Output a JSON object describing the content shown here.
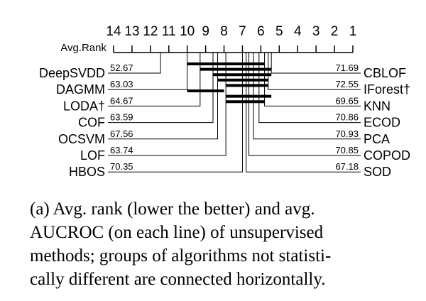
{
  "chart_data": {
    "type": "critical-difference",
    "axis_label": "Avg.Rank",
    "xlim": [
      14,
      1
    ],
    "xticks": [
      14,
      13,
      12,
      11,
      10,
      9,
      8,
      7,
      6,
      5,
      4,
      3,
      2,
      1
    ],
    "left_methods": {
      "names": [
        "DeepSVDD",
        "DAGMM",
        "LODA†",
        "COF",
        "OCSVM",
        "LOF",
        "HBOS"
      ],
      "ranks": [
        11.45,
        10.0,
        9.3,
        8.6,
        8.35,
        7.9,
        7.0
      ],
      "aucroc": [
        52.67,
        63.03,
        64.67,
        63.59,
        67.56,
        63.74,
        70.35
      ]
    },
    "right_methods": {
      "names": [
        "CBLOF",
        "IForest†",
        "KNN",
        "ECOD",
        "PCA",
        "COPOD",
        "SOD"
      ],
      "ranks": [
        5.43,
        5.6,
        5.8,
        6.1,
        6.4,
        6.65,
        6.8
      ],
      "aucroc": [
        71.69,
        72.55,
        69.65,
        70.86,
        70.93,
        70.85,
        67.18
      ]
    },
    "cliques": [
      [
        10.0,
        5.8
      ],
      [
        9.3,
        5.43
      ],
      [
        8.6,
        5.43
      ],
      [
        8.35,
        5.6
      ],
      [
        7.9,
        5.6
      ],
      [
        10.0,
        8.0
      ],
      [
        7.9,
        5.43
      ],
      [
        7.9,
        5.8
      ]
    ],
    "caption": [
      "(a) Avg. rank (lower the better) and avg.",
      "AUCROC (on each line) of unsupervised",
      "methods; groups of algorithms not statisti-",
      "cally different are connected horizontally."
    ]
  }
}
